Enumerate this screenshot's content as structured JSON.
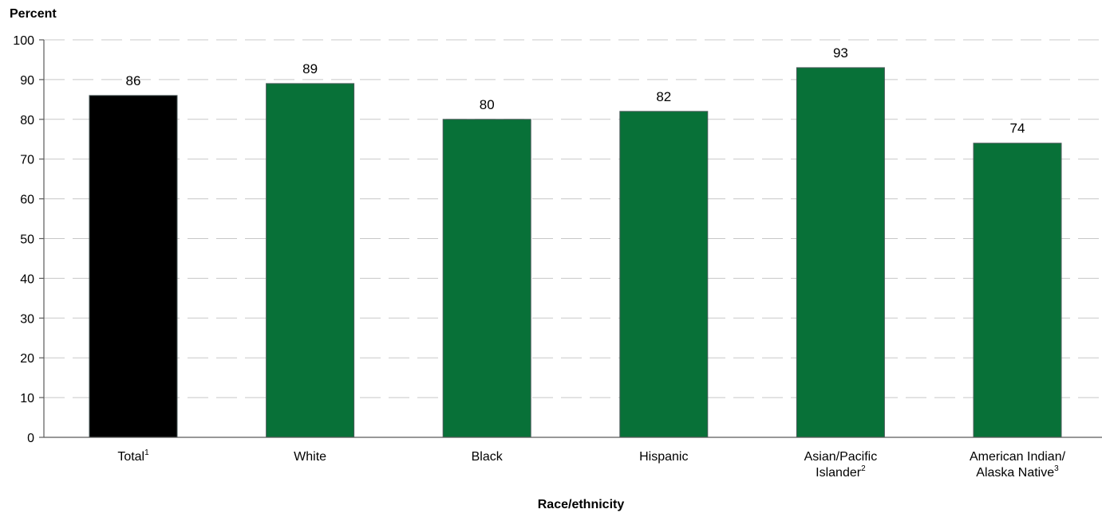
{
  "chart_data": {
    "type": "bar",
    "ylabel": "Percent",
    "xlabel": "Race/ethnicity",
    "ylim": [
      0,
      100
    ],
    "yticks": [
      0,
      10,
      20,
      30,
      40,
      50,
      60,
      70,
      80,
      90,
      100
    ],
    "grid": true,
    "categories": [
      {
        "lines": [
          {
            "text": "Total",
            "sup": "1"
          }
        ]
      },
      {
        "lines": [
          {
            "text": "White",
            "sup": ""
          }
        ]
      },
      {
        "lines": [
          {
            "text": "Black",
            "sup": ""
          }
        ]
      },
      {
        "lines": [
          {
            "text": "Hispanic",
            "sup": ""
          }
        ]
      },
      {
        "lines": [
          {
            "text": "Asian/Pacific",
            "sup": ""
          },
          {
            "text": "Islander",
            "sup": "2"
          }
        ]
      },
      {
        "lines": [
          {
            "text": "American Indian/",
            "sup": ""
          },
          {
            "text": "Alaska Native",
            "sup": "3"
          }
        ]
      }
    ],
    "values": [
      86,
      89,
      80,
      82,
      93,
      74
    ],
    "value_labels": [
      "86",
      "89",
      "80",
      "82",
      "93",
      "74"
    ],
    "colors": [
      "#000000",
      "#087138",
      "#087138",
      "#087138",
      "#087138",
      "#087138"
    ]
  }
}
